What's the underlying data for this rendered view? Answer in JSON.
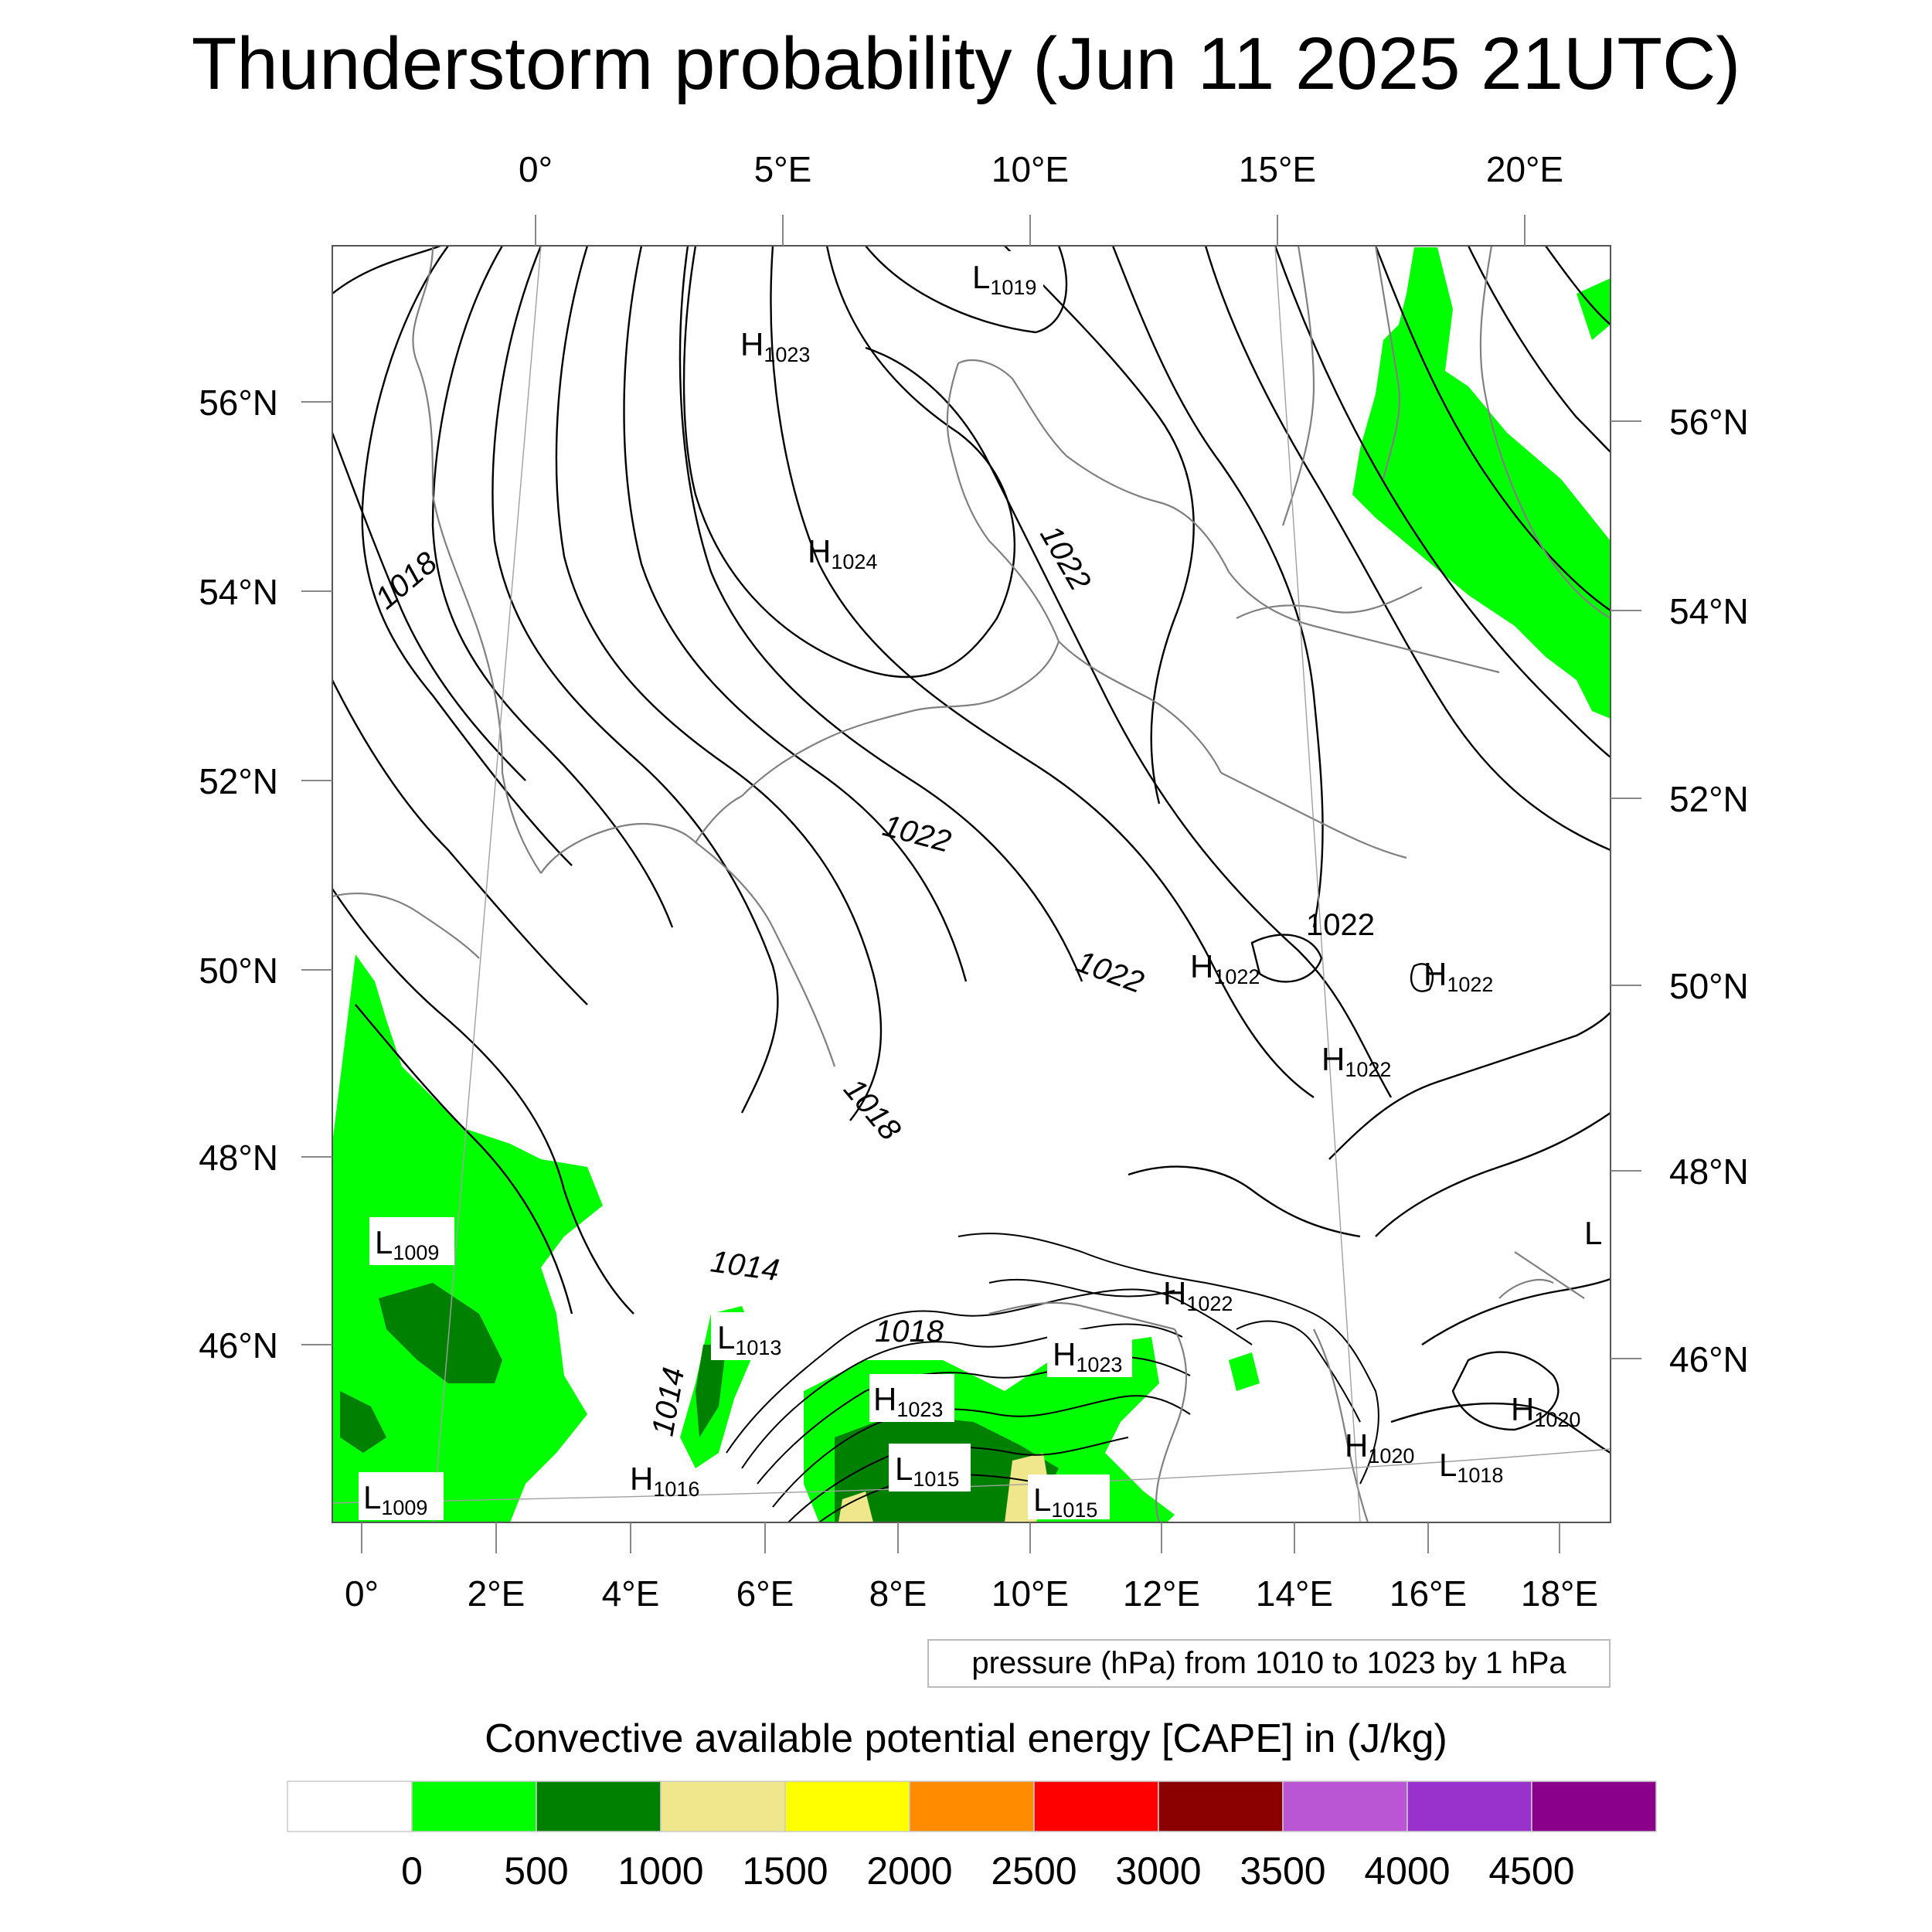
{
  "title": "Thunderstorm probability (Jun 11 2025 21UTC)",
  "map": {
    "top_lon_labels": [
      "0°",
      "5°E",
      "10°E",
      "15°E",
      "20°E"
    ],
    "bottom_lon_labels": [
      "0°",
      "2°E",
      "4°E",
      "6°E",
      "8°E",
      "10°E",
      "12°E",
      "14°E",
      "16°E",
      "18°E"
    ],
    "left_lat_labels": [
      "56°N",
      "54°N",
      "52°N",
      "50°N",
      "48°N",
      "46°N"
    ],
    "right_lat_labels": [
      "56°N",
      "54°N",
      "52°N",
      "50°N",
      "48°N",
      "46°N"
    ],
    "contour_labels": [
      "1018",
      "1022",
      "1022",
      "1022",
      "1022",
      "1018",
      "1014",
      "1014",
      "1018"
    ],
    "pressure_centers": [
      {
        "type": "L",
        "value": "1019"
      },
      {
        "type": "H",
        "value": "1023"
      },
      {
        "type": "H",
        "value": "1024"
      },
      {
        "type": "H",
        "value": "1022"
      },
      {
        "type": "H",
        "value": "1022"
      },
      {
        "type": "H",
        "value": "1022"
      },
      {
        "type": "L",
        "value": "1009"
      },
      {
        "type": "L",
        "value": "1009"
      },
      {
        "type": "L",
        "value": "1013"
      },
      {
        "type": "H",
        "value": "1016"
      },
      {
        "type": "H",
        "value": "1023"
      },
      {
        "type": "H",
        "value": "1023"
      },
      {
        "type": "H",
        "value": "1022"
      },
      {
        "type": "L",
        "value": "1015"
      },
      {
        "type": "L",
        "value": "1015"
      },
      {
        "type": "H",
        "value": "1020"
      },
      {
        "type": "H",
        "value": "1020"
      },
      {
        "type": "L",
        "value": "1018"
      },
      {
        "type": "L",
        "value": ""
      }
    ]
  },
  "contour_note": "pressure (hPa) from 1010 to 1023 by 1 hPa",
  "colorbar": {
    "title": "Convective available potential energy [CAPE] in (J/kg)",
    "colors": [
      "#ffffff",
      "#00ff00",
      "#008000",
      "#f0e68c",
      "#ffff00",
      "#ff8c00",
      "#ff0000",
      "#8b0000",
      "#ba55d3",
      "#9932cc",
      "#8b008b"
    ],
    "tick_labels": [
      "0",
      "500",
      "1000",
      "1500",
      "2000",
      "2500",
      "3000",
      "3500",
      "4000",
      "4500"
    ]
  }
}
